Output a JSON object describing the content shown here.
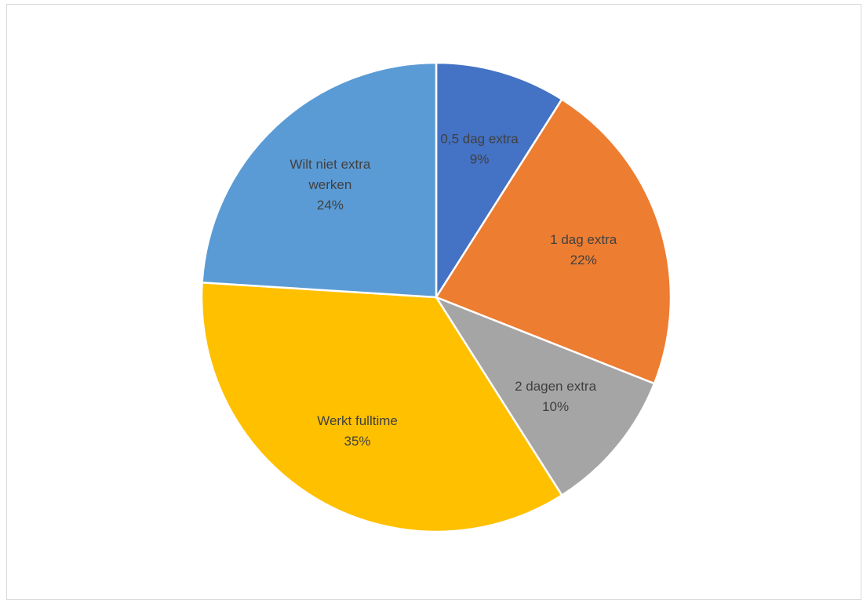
{
  "chart_data": {
    "type": "pie",
    "title": "",
    "legend": "none",
    "categories": [
      "0,5 dag extra",
      "1 dag extra",
      "2 dagen extra",
      "Werkt fulltime",
      "Wilt niet extra werken"
    ],
    "values": [
      9,
      22,
      10,
      35,
      24
    ],
    "data_labels": [
      {
        "lines": [
          "0,5 dag extra",
          "9%"
        ]
      },
      {
        "lines": [
          "1 dag extra",
          "22%"
        ]
      },
      {
        "lines": [
          "2 dagen extra",
          "10%"
        ]
      },
      {
        "lines": [
          "Werkt fulltime",
          "35%"
        ]
      },
      {
        "lines": [
          "Wilt niet extra",
          "werken",
          "24%"
        ]
      }
    ],
    "colors": [
      "#4472C4",
      "#ED7D31",
      "#A5A5A5",
      "#FFC000",
      "#5B9BD5"
    ]
  }
}
